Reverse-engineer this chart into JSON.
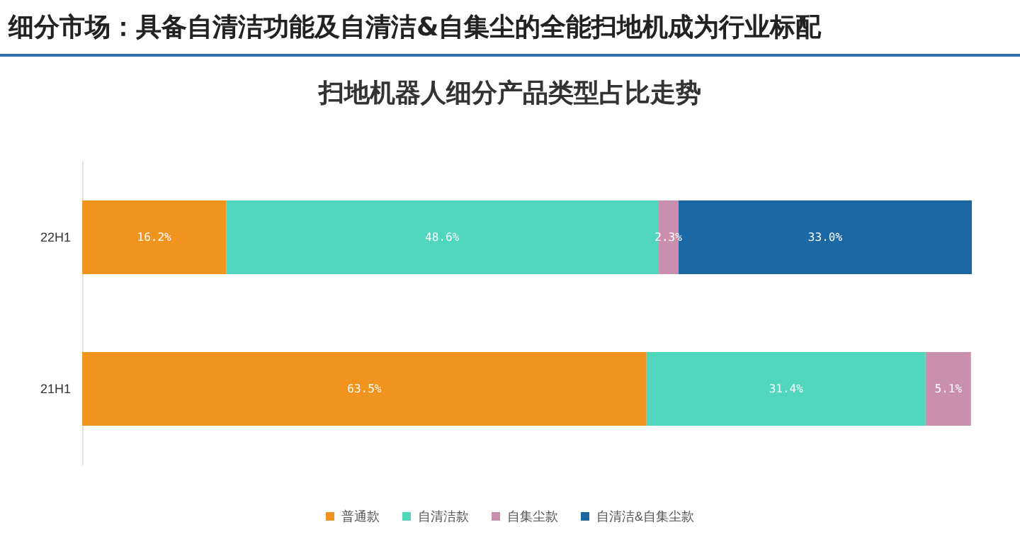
{
  "chart_data": {
    "type": "bar",
    "orientation": "horizontal",
    "stacked": true,
    "title": "细分市场：具备自清洁功能及自清洁&自集尘的全能扫地机成为行业标配",
    "subtitle": "扫地机器人细分产品类型占比走势",
    "categories": [
      "22H1",
      "21H1"
    ],
    "series": [
      {
        "name": "普通款",
        "color": "#f0931f",
        "values": [
          16.2,
          63.5
        ],
        "value_labels": [
          "16.2%",
          "63.5%"
        ]
      },
      {
        "name": "自清洁款",
        "color": "#4fd6bd",
        "values": [
          48.6,
          31.4
        ],
        "value_labels": [
          "48.6%",
          "31.4%"
        ]
      },
      {
        "name": "自集尘款",
        "color": "#c98fad",
        "values": [
          2.3,
          5.1
        ],
        "value_labels": [
          "2.3%",
          "5.1%"
        ]
      },
      {
        "name": "自清洁&自集尘款",
        "color": "#1c68a4",
        "values": [
          33.0,
          null
        ],
        "value_labels": [
          "33.0%",
          null
        ]
      }
    ],
    "legend": "bottom"
  }
}
